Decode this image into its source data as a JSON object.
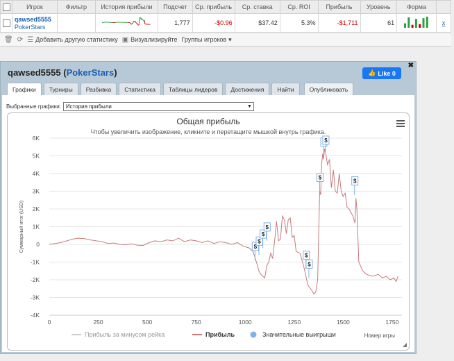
{
  "stats_table": {
    "headers": [
      "Игрок",
      "Фильтр",
      "История прибыли",
      "Подсчет",
      "Ср. прибыль",
      "Ср. ставка",
      "Ср. ROI",
      "Прибыль",
      "Уровень",
      "Форма"
    ],
    "row": {
      "player": "qawsed5555",
      "site": "PokerStars",
      "filter": "",
      "count": "1,777",
      "avg_profit": "-$0.96",
      "avg_stake": "$37.42",
      "avg_roi": "5.3%",
      "profit": "-$1,711",
      "level": "61",
      "remove": "x"
    },
    "form_bars": [
      {
        "value": 6,
        "color": "#2ea043"
      },
      {
        "value": 14,
        "color": "#2ea043"
      },
      {
        "value": 4,
        "color": "#cc0000"
      },
      {
        "value": 12,
        "color": "#2ea043"
      },
      {
        "value": 5,
        "color": "#cc0000"
      },
      {
        "value": 13,
        "color": "#2ea043"
      },
      {
        "value": 15,
        "color": "#2ea043"
      }
    ]
  },
  "toolbar": {
    "add_stats": "Добавить другую статистику",
    "visualize": "Визуализируйте",
    "groups": "Группы игроков"
  },
  "panel": {
    "player": "qawsed5555",
    "site": "PokerStars",
    "like_label": "Like 0",
    "tabs": [
      "Графики",
      "Турниры",
      "Разбивка",
      "Статистика",
      "Таблицы лидеров",
      "Достижения",
      "Найти"
    ],
    "publish_tab": "Опубликовать",
    "chart_select_label": "Выбранные графики:",
    "chart_select_value": "История прибыли"
  },
  "chart_data": {
    "type": "line",
    "title": "Общая прибыль",
    "subtitle": "Чтобы увеличить изображение, кликните и перетащите мышкой внутрь графика.",
    "ylabel": "Суммарный итог (USD)",
    "xlabel": "Номер игры",
    "xlim": [
      0,
      1800
    ],
    "ylim": [
      -4000,
      6000
    ],
    "x_ticks": [
      0,
      250,
      500,
      750,
      1000,
      1250,
      1500,
      1750
    ],
    "y_ticks": [
      6000,
      5000,
      4000,
      3000,
      2000,
      1000,
      0,
      -1000,
      -2000,
      -3000,
      -4000
    ],
    "y_tick_labels": [
      "6K",
      "5K",
      "4K",
      "3K",
      "2K",
      "1K",
      "0",
      "-1K",
      "-2K",
      "-3K",
      "-4K"
    ],
    "series": [
      {
        "name": "Прибыль",
        "color": "#c77a7a",
        "x": [
          0,
          30,
          60,
          90,
          120,
          150,
          180,
          210,
          240,
          270,
          300,
          330,
          360,
          390,
          420,
          450,
          480,
          510,
          540,
          570,
          600,
          630,
          660,
          690,
          720,
          750,
          780,
          810,
          840,
          870,
          900,
          930,
          960,
          990,
          1020,
          1040,
          1060,
          1070,
          1080,
          1090,
          1100,
          1110,
          1120,
          1130,
          1140,
          1150,
          1160,
          1170,
          1180,
          1190,
          1200,
          1210,
          1220,
          1230,
          1240,
          1250,
          1260,
          1280,
          1300,
          1320,
          1340,
          1350,
          1360,
          1370,
          1380,
          1385,
          1390,
          1395,
          1400,
          1405,
          1410,
          1420,
          1430,
          1440,
          1450,
          1460,
          1470,
          1480,
          1490,
          1500,
          1510,
          1520,
          1530,
          1540,
          1550,
          1560,
          1565,
          1570,
          1580,
          1600,
          1620,
          1650,
          1680,
          1700,
          1720,
          1740,
          1760,
          1770,
          1780
        ],
        "y": [
          0,
          50,
          100,
          200,
          300,
          350,
          320,
          250,
          200,
          150,
          50,
          80,
          0,
          -20,
          30,
          -50,
          -60,
          100,
          200,
          150,
          250,
          200,
          350,
          150,
          250,
          200,
          100,
          200,
          50,
          150,
          100,
          0,
          100,
          -100,
          -200,
          -400,
          -1100,
          -1500,
          -1700,
          -1800,
          -1900,
          -1200,
          -1000,
          -500,
          -800,
          200,
          1300,
          200,
          300,
          1600,
          1400,
          600,
          1400,
          1500,
          400,
          500,
          -400,
          -500,
          -1300,
          -2300,
          -2600,
          -2800,
          -2700,
          -2000,
          3000,
          2800,
          4500,
          5100,
          4800,
          5400,
          5200,
          4500,
          4800,
          3200,
          4200,
          3000,
          2900,
          4000,
          3000,
          2700,
          2900,
          2100,
          2000,
          1800,
          1600,
          1200,
          2600,
          2000,
          -1000,
          -1500,
          -1700,
          -1800,
          -1700,
          -1900,
          -1800,
          -2000,
          -1900,
          -2100,
          -1800
        ]
      },
      {
        "name": "Прибыль за минусом рейка",
        "color": "#dddddd",
        "x": [],
        "y": []
      },
      {
        "name": "Значительные выигрыши",
        "color": "#7fb2e5",
        "type": "flags",
        "x": [
          1050,
          1070,
          1090,
          1110,
          1310,
          1325,
          1380,
          1400,
          1410,
          1558
        ],
        "y": [
          -900,
          -600,
          -200,
          200,
          -1400,
          -1900,
          3000,
          5000,
          5100,
          2800
        ],
        "flag_text": "$"
      }
    ],
    "legend": [
      "Прибыль за минусом рейка",
      "Прибыль",
      "Значительные выигрыши"
    ],
    "legend_position": "bottom",
    "grid": "horizontal"
  }
}
